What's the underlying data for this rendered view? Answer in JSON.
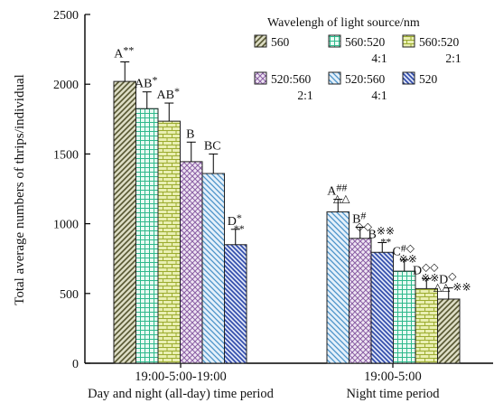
{
  "chart_data": {
    "type": "bar",
    "xlabel": "",
    "ylabel": "Total average numbers of thrips/individual",
    "ylim": [
      0,
      2500
    ],
    "yticks": [
      0,
      500,
      1000,
      1500,
      2000,
      2500
    ],
    "grid": false,
    "legend": {
      "title": "Wavelengh of light source/nm",
      "placement": "top-right",
      "entries": [
        {
          "label": "560",
          "sub": "",
          "pattern": "diag-lr",
          "color": "#7a7a45"
        },
        {
          "label": "560:520",
          "sub": "4:1",
          "pattern": "check",
          "color": "#35c49a"
        },
        {
          "label": "560:520",
          "sub": "2:1",
          "pattern": "brick",
          "color": "#b9c84a"
        },
        {
          "label": "520:560",
          "sub": "2:1",
          "pattern": "cross",
          "color": "#a97cbf"
        },
        {
          "label": "520:560",
          "sub": "4:1",
          "pattern": "diag-rl-light",
          "color": "#5aa2d2"
        },
        {
          "label": "520",
          "sub": "",
          "pattern": "diag-rl-dense",
          "color": "#3a55b5"
        }
      ]
    },
    "groups": [
      {
        "label": "19:00-5:00-19:00",
        "sublabel": "Day and night (all-day) time period",
        "bars": [
          {
            "series": "560",
            "value": 2020,
            "error": 140,
            "letter": "A",
            "marks": "**"
          },
          {
            "series": "560:520 4:1",
            "value": 1825,
            "error": 120,
            "letter": "AB",
            "marks": "*"
          },
          {
            "series": "560:520 2:1",
            "value": 1735,
            "error": 130,
            "letter": "AB",
            "marks": "*"
          },
          {
            "series": "520:560 2:1",
            "value": 1445,
            "error": 140,
            "letter": "B",
            "marks": ""
          },
          {
            "series": "520:560 4:1",
            "value": 1360,
            "error": 140,
            "letter": "BC",
            "marks": ""
          },
          {
            "series": "520",
            "value": 850,
            "error": 110,
            "letter": "D",
            "marks": "*\n**"
          }
        ]
      },
      {
        "label": "19:00-5:00",
        "sublabel": "Night time period",
        "bars": [
          {
            "series": "520:560 4:1",
            "value": 1085,
            "error": 90,
            "letter": "A",
            "marks": "##\n△△"
          },
          {
            "series": "520:560 2:1",
            "value": 895,
            "error": 80,
            "letter": "B",
            "marks": "#\n◇◇"
          },
          {
            "series": "520",
            "value": 795,
            "error": 70,
            "letter": "B",
            "marks": "※※\n**"
          },
          {
            "series": "560:520 4:1",
            "value": 660,
            "error": 80,
            "letter": "C",
            "marks": "#◇\n※※"
          },
          {
            "series": "560:520 2:1",
            "value": 535,
            "error": 70,
            "letter": "D",
            "marks": "◇◇\n※※"
          },
          {
            "series": "560",
            "value": 460,
            "error": 80,
            "letter": "D",
            "marks": "◇\n△△\n※※"
          }
        ]
      }
    ]
  }
}
